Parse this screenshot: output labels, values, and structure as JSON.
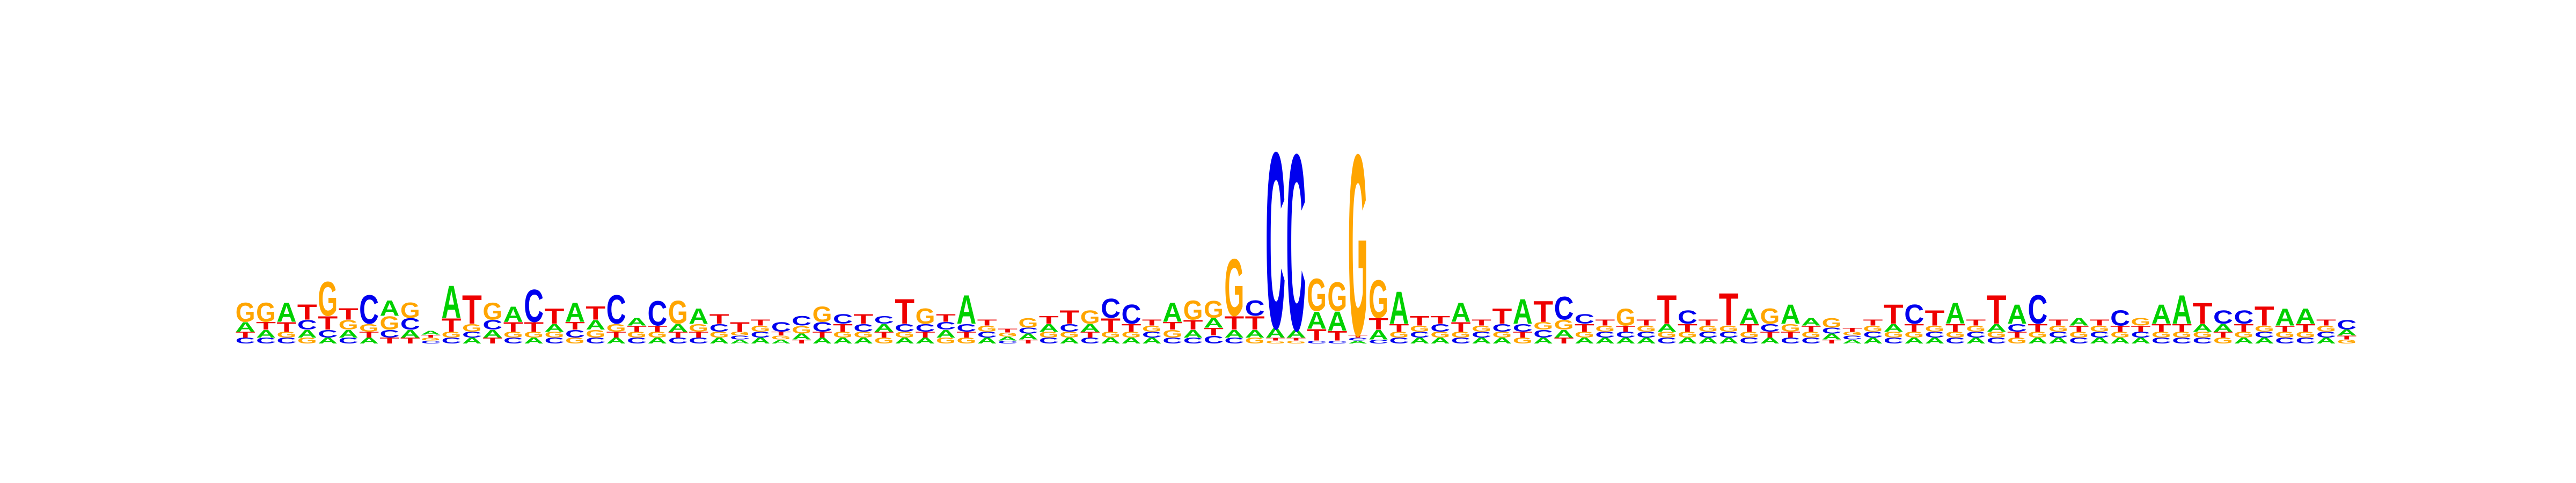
{
  "logo": {
    "alphabet": [
      "A",
      "C",
      "G",
      "T"
    ],
    "colors": {
      "A": "#00d000",
      "C": "#0000ee",
      "G": "#ffa500",
      "T": "#ee0000"
    },
    "max_bits": 2,
    "positions": [
      {
        "A": 0.1,
        "C": 0.06,
        "G": 0.2,
        "T": 0.06
      },
      {
        "A": 0.08,
        "C": 0.06,
        "G": 0.2,
        "T": 0.08
      },
      {
        "A": 0.2,
        "C": 0.06,
        "G": 0.06,
        "T": 0.1
      },
      {
        "A": 0.08,
        "C": 0.1,
        "G": 0.06,
        "T": 0.16
      },
      {
        "A": 0.06,
        "C": 0.08,
        "G": 0.36,
        "T": 0.14
      },
      {
        "A": 0.08,
        "C": 0.06,
        "G": 0.1,
        "T": 0.12
      },
      {
        "A": 0.06,
        "C": 0.3,
        "G": 0.08,
        "T": 0.06
      },
      {
        "A": 0.16,
        "C": 0.08,
        "G": 0.14,
        "T": 0.06
      },
      {
        "A": 0.08,
        "C": 0.12,
        "G": 0.16,
        "T": 0.06
      },
      {
        "A": 0.04,
        "C": 0.03,
        "G": 0.03,
        "T": 0.03
      },
      {
        "A": 0.34,
        "C": 0.06,
        "G": 0.06,
        "T": 0.14
      },
      {
        "A": 0.06,
        "C": 0.06,
        "G": 0.08,
        "T": 0.3
      },
      {
        "A": 0.08,
        "C": 0.1,
        "G": 0.18,
        "T": 0.06
      },
      {
        "A": 0.16,
        "C": 0.06,
        "G": 0.06,
        "T": 0.1
      },
      {
        "A": 0.06,
        "C": 0.34,
        "G": 0.06,
        "T": 0.1
      },
      {
        "A": 0.08,
        "C": 0.06,
        "G": 0.06,
        "T": 0.16
      },
      {
        "A": 0.2,
        "C": 0.08,
        "G": 0.06,
        "T": 0.08
      },
      {
        "A": 0.1,
        "C": 0.06,
        "G": 0.08,
        "T": 0.14
      },
      {
        "A": 0.06,
        "C": 0.3,
        "G": 0.08,
        "T": 0.06
      },
      {
        "A": 0.08,
        "C": 0.06,
        "G": 0.06,
        "T": 0.06
      },
      {
        "A": 0.06,
        "C": 0.26,
        "G": 0.06,
        "T": 0.06
      },
      {
        "A": 0.08,
        "C": 0.06,
        "G": 0.24,
        "T": 0.06
      },
      {
        "A": 0.16,
        "C": 0.06,
        "G": 0.08,
        "T": 0.06
      },
      {
        "A": 0.06,
        "C": 0.08,
        "G": 0.06,
        "T": 0.1
      },
      {
        "A": 0.04,
        "C": 0.04,
        "G": 0.04,
        "T": 0.1
      },
      {
        "A": 0.06,
        "C": 0.06,
        "G": 0.06,
        "T": 0.06
      },
      {
        "A": 0.04,
        "C": 0.1,
        "G": 0.04,
        "T": 0.04
      },
      {
        "A": 0.06,
        "C": 0.1,
        "G": 0.08,
        "T": 0.04
      },
      {
        "A": 0.06,
        "C": 0.1,
        "G": 0.16,
        "T": 0.06
      },
      {
        "A": 0.06,
        "C": 0.1,
        "G": 0.06,
        "T": 0.08
      },
      {
        "A": 0.06,
        "C": 0.08,
        "G": 0.06,
        "T": 0.1
      },
      {
        "A": 0.08,
        "C": 0.08,
        "G": 0.06,
        "T": 0.06
      },
      {
        "A": 0.06,
        "C": 0.08,
        "G": 0.06,
        "T": 0.26
      },
      {
        "A": 0.06,
        "C": 0.08,
        "G": 0.16,
        "T": 0.06
      },
      {
        "A": 0.08,
        "C": 0.08,
        "G": 0.06,
        "T": 0.08
      },
      {
        "A": 0.3,
        "C": 0.08,
        "G": 0.06,
        "T": 0.06
      },
      {
        "A": 0.06,
        "C": 0.06,
        "G": 0.06,
        "T": 0.06
      },
      {
        "A": 0.04,
        "C": 0.03,
        "G": 0.04,
        "T": 0.04
      },
      {
        "A": 0.06,
        "C": 0.06,
        "G": 0.1,
        "T": 0.04
      },
      {
        "A": 0.08,
        "C": 0.06,
        "G": 0.06,
        "T": 0.08
      },
      {
        "A": 0.06,
        "C": 0.08,
        "G": 0.06,
        "T": 0.14
      },
      {
        "A": 0.08,
        "C": 0.06,
        "G": 0.14,
        "T": 0.06
      },
      {
        "A": 0.06,
        "C": 0.2,
        "G": 0.06,
        "T": 0.14
      },
      {
        "A": 0.06,
        "C": 0.2,
        "G": 0.06,
        "T": 0.08
      },
      {
        "A": 0.06,
        "C": 0.06,
        "G": 0.06,
        "T": 0.06
      },
      {
        "A": 0.2,
        "C": 0.06,
        "G": 0.08,
        "T": 0.08
      },
      {
        "A": 0.08,
        "C": 0.06,
        "G": 0.2,
        "T": 0.1
      },
      {
        "A": 0.1,
        "C": 0.08,
        "G": 0.18,
        "T": 0.08
      },
      {
        "A": 0.08,
        "C": 0.06,
        "G": 0.6,
        "T": 0.14
      },
      {
        "A": 0.08,
        "C": 0.16,
        "G": 0.06,
        "T": 0.14
      },
      {
        "A": 0.1,
        "C": 1.85,
        "G": 0.03,
        "T": 0.03
      },
      {
        "A": 0.08,
        "C": 1.85,
        "G": 0.03,
        "T": 0.03
      },
      {
        "A": 0.18,
        "C": 0.03,
        "G": 0.34,
        "T": 0.12
      },
      {
        "A": 0.2,
        "C": 0.03,
        "G": 0.3,
        "T": 0.1
      },
      {
        "A": 0.03,
        "C": 0.03,
        "G": 1.9,
        "T": 0.03
      },
      {
        "A": 0.1,
        "C": 0.04,
        "G": 0.4,
        "T": 0.12
      },
      {
        "A": 0.34,
        "C": 0.06,
        "G": 0.06,
        "T": 0.08
      },
      {
        "A": 0.06,
        "C": 0.06,
        "G": 0.06,
        "T": 0.1
      },
      {
        "A": 0.06,
        "C": 0.08,
        "G": 0.06,
        "T": 0.08
      },
      {
        "A": 0.2,
        "C": 0.06,
        "G": 0.06,
        "T": 0.1
      },
      {
        "A": 0.06,
        "C": 0.06,
        "G": 0.06,
        "T": 0.06
      },
      {
        "A": 0.06,
        "C": 0.08,
        "G": 0.06,
        "T": 0.16
      },
      {
        "A": 0.26,
        "C": 0.08,
        "G": 0.06,
        "T": 0.06
      },
      {
        "A": 0.06,
        "C": 0.08,
        "G": 0.08,
        "T": 0.22
      },
      {
        "A": 0.08,
        "C": 0.24,
        "G": 0.1,
        "T": 0.06
      },
      {
        "A": 0.06,
        "C": 0.1,
        "G": 0.06,
        "T": 0.08
      },
      {
        "A": 0.06,
        "C": 0.06,
        "G": 0.06,
        "T": 0.06
      },
      {
        "A": 0.06,
        "C": 0.06,
        "G": 0.18,
        "T": 0.06
      },
      {
        "A": 0.06,
        "C": 0.06,
        "G": 0.06,
        "T": 0.06
      },
      {
        "A": 0.08,
        "C": 0.06,
        "G": 0.06,
        "T": 0.3
      },
      {
        "A": 0.06,
        "C": 0.14,
        "G": 0.06,
        "T": 0.08
      },
      {
        "A": 0.06,
        "C": 0.06,
        "G": 0.06,
        "T": 0.06
      },
      {
        "A": 0.06,
        "C": 0.06,
        "G": 0.06,
        "T": 0.34
      },
      {
        "A": 0.16,
        "C": 0.06,
        "G": 0.06,
        "T": 0.08
      },
      {
        "A": 0.06,
        "C": 0.08,
        "G": 0.16,
        "T": 0.06
      },
      {
        "A": 0.2,
        "C": 0.06,
        "G": 0.08,
        "T": 0.06
      },
      {
        "A": 0.08,
        "C": 0.06,
        "G": 0.06,
        "T": 0.06
      },
      {
        "A": 0.06,
        "C": 0.06,
        "G": 0.1,
        "T": 0.04
      },
      {
        "A": 0.04,
        "C": 0.04,
        "G": 0.04,
        "T": 0.04
      },
      {
        "A": 0.06,
        "C": 0.06,
        "G": 0.06,
        "T": 0.06
      },
      {
        "A": 0.08,
        "C": 0.06,
        "G": 0.06,
        "T": 0.2
      },
      {
        "A": 0.06,
        "C": 0.2,
        "G": 0.06,
        "T": 0.08
      },
      {
        "A": 0.06,
        "C": 0.06,
        "G": 0.06,
        "T": 0.16
      },
      {
        "A": 0.22,
        "C": 0.06,
        "G": 0.06,
        "T": 0.08
      },
      {
        "A": 0.06,
        "C": 0.06,
        "G": 0.06,
        "T": 0.06
      },
      {
        "A": 0.08,
        "C": 0.06,
        "G": 0.06,
        "T": 0.3
      },
      {
        "A": 0.2,
        "C": 0.08,
        "G": 0.06,
        "T": 0.06
      },
      {
        "A": 0.06,
        "C": 0.3,
        "G": 0.06,
        "T": 0.08
      },
      {
        "A": 0.06,
        "C": 0.06,
        "G": 0.06,
        "T": 0.06
      },
      {
        "A": 0.08,
        "C": 0.06,
        "G": 0.06,
        "T": 0.06
      },
      {
        "A": 0.06,
        "C": 0.06,
        "G": 0.06,
        "T": 0.06
      },
      {
        "A": 0.06,
        "C": 0.16,
        "G": 0.06,
        "T": 0.06
      },
      {
        "A": 0.06,
        "C": 0.06,
        "G": 0.08,
        "T": 0.06
      },
      {
        "A": 0.2,
        "C": 0.06,
        "G": 0.06,
        "T": 0.08
      },
      {
        "A": 0.3,
        "C": 0.06,
        "G": 0.06,
        "T": 0.08
      },
      {
        "A": 0.08,
        "C": 0.06,
        "G": 0.06,
        "T": 0.22
      },
      {
        "A": 0.08,
        "C": 0.14,
        "G": 0.06,
        "T": 0.06
      },
      {
        "A": 0.06,
        "C": 0.14,
        "G": 0.06,
        "T": 0.08
      },
      {
        "A": 0.06,
        "C": 0.06,
        "G": 0.06,
        "T": 0.2
      },
      {
        "A": 0.18,
        "C": 0.06,
        "G": 0.06,
        "T": 0.06
      },
      {
        "A": 0.16,
        "C": 0.06,
        "G": 0.06,
        "T": 0.08
      },
      {
        "A": 0.06,
        "C": 0.06,
        "G": 0.06,
        "T": 0.06
      },
      {
        "A": 0.06,
        "C": 0.1,
        "G": 0.04,
        "T": 0.04
      }
    ]
  }
}
